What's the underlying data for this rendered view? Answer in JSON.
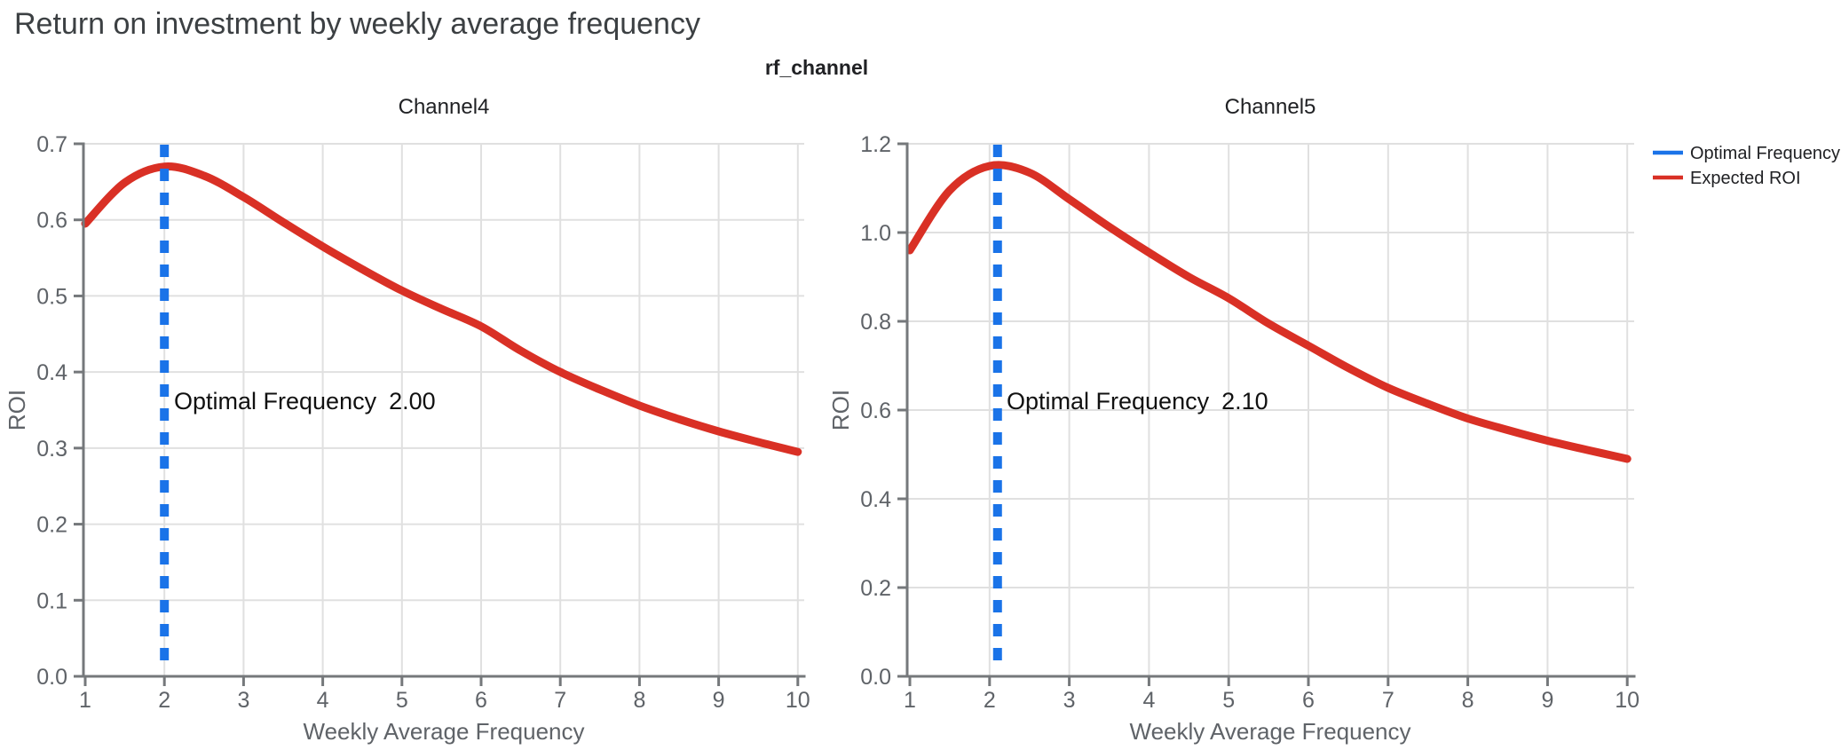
{
  "title": "Return on investment by weekly average frequency",
  "suptitle": "rf_channel",
  "colors": {
    "optimal_frequency": "#1a73e8",
    "expected_roi": "#d93025",
    "title_text": "#3c4043",
    "body_text": "#202124",
    "tick_text": "#5f6368",
    "gridline": "#e0e0e0",
    "axis_line": "#75787b"
  },
  "legend": [
    {
      "label": "Optimal Frequency",
      "color": "#1a73e8"
    },
    {
      "label": "Expected ROI",
      "color": "#d93025"
    }
  ],
  "chart_data": [
    {
      "type": "line",
      "title": "Channel4",
      "xlabel": "Weekly Average Frequency",
      "ylabel": "ROI",
      "xlim": [
        1,
        10
      ],
      "ylim": [
        0,
        0.7
      ],
      "xticks": [
        1,
        2,
        3,
        4,
        5,
        6,
        7,
        8,
        9,
        10
      ],
      "ytick_labels": [
        "0.0",
        "0.1",
        "0.2",
        "0.3",
        "0.4",
        "0.5",
        "0.6",
        "0.7"
      ],
      "yticks": [
        0.0,
        0.1,
        0.2,
        0.3,
        0.4,
        0.5,
        0.6,
        0.7
      ],
      "grid": true,
      "legend_position": "right-of-figure",
      "optimal_frequency": 2.0,
      "annotation": {
        "label": "Optimal Frequency",
        "value": "2.00"
      },
      "series": [
        {
          "name": "Expected ROI",
          "x": [
            1,
            1.5,
            2,
            2.5,
            3,
            3.5,
            4,
            4.5,
            5,
            5.5,
            6,
            6.5,
            7,
            7.5,
            8,
            8.5,
            9,
            9.5,
            10
          ],
          "y": [
            0.595,
            0.649,
            0.67,
            0.658,
            0.63,
            0.597,
            0.565,
            0.535,
            0.507,
            0.483,
            0.46,
            0.428,
            0.4,
            0.377,
            0.356,
            0.338,
            0.322,
            0.308,
            0.295
          ]
        }
      ]
    },
    {
      "type": "line",
      "title": "Channel5",
      "xlabel": "Weekly Average Frequency",
      "ylabel": "ROI",
      "xlim": [
        1,
        10
      ],
      "ylim": [
        0,
        1.2
      ],
      "xticks": [
        1,
        2,
        3,
        4,
        5,
        6,
        7,
        8,
        9,
        10
      ],
      "ytick_labels": [
        "0.0",
        "0.2",
        "0.4",
        "0.6",
        "0.8",
        "1.0",
        "1.2"
      ],
      "yticks": [
        0.0,
        0.2,
        0.4,
        0.6,
        0.8,
        1.0,
        1.2
      ],
      "grid": true,
      "legend_position": "right-of-figure",
      "optimal_frequency": 2.1,
      "annotation": {
        "label": "Optimal Frequency",
        "value": "2.10"
      },
      "series": [
        {
          "name": "Expected ROI",
          "x": [
            1,
            1.5,
            2,
            2.5,
            3,
            3.5,
            4,
            4.5,
            5,
            5.5,
            6,
            6.5,
            7,
            7.5,
            8,
            8.5,
            9,
            9.5,
            10
          ],
          "y": [
            0.96,
            1.095,
            1.15,
            1.135,
            1.075,
            1.013,
            0.955,
            0.9,
            0.852,
            0.795,
            0.745,
            0.695,
            0.65,
            0.614,
            0.581,
            0.555,
            0.531,
            0.51,
            0.49
          ]
        }
      ]
    }
  ]
}
